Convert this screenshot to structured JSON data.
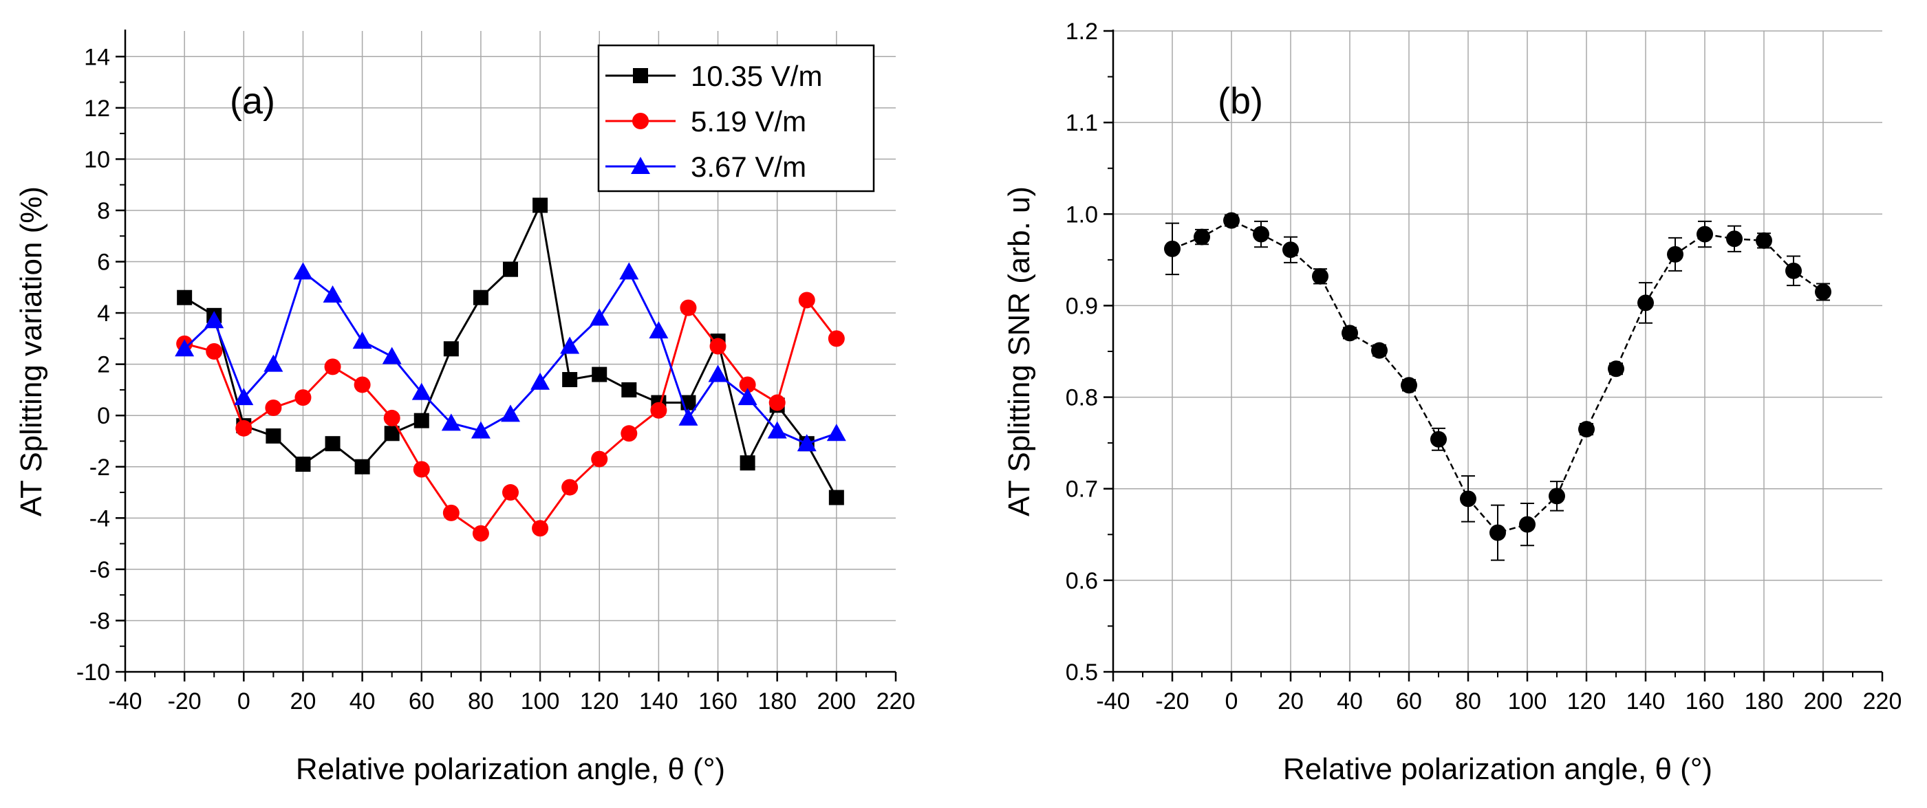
{
  "chart_data": [
    {
      "type": "line",
      "panel_label": "(a)",
      "xlabel": "Relative polarization angle, θ (°)",
      "ylabel": "AT Splitting variation (%)",
      "xlim": [
        -40,
        220
      ],
      "ylim": [
        -10,
        15
      ],
      "x_ticks": [
        -40,
        -20,
        0,
        20,
        40,
        60,
        80,
        100,
        120,
        140,
        160,
        180,
        200,
        220
      ],
      "y_ticks": [
        -10,
        -8,
        -6,
        -4,
        -2,
        0,
        2,
        4,
        6,
        8,
        10,
        12,
        14
      ],
      "grid": true,
      "legend_position": "top-right",
      "x": [
        -20,
        -10,
        0,
        10,
        20,
        30,
        40,
        50,
        60,
        70,
        80,
        90,
        100,
        110,
        120,
        130,
        140,
        150,
        160,
        170,
        180,
        190,
        200
      ],
      "series": [
        {
          "name": "10.35 V/m",
          "color": "#000000",
          "marker": "square",
          "values": [
            4.6,
            3.9,
            -0.4,
            -0.8,
            -1.9,
            -1.1,
            -2.0,
            -0.7,
            -0.2,
            2.6,
            4.6,
            5.7,
            8.2,
            1.4,
            1.6,
            1.0,
            0.5,
            0.5,
            2.9,
            -1.85,
            0.4,
            -1.1,
            -3.2
          ]
        },
        {
          "name": "5.19 V/m",
          "color": "#ff0000",
          "marker": "circle",
          "values": [
            2.8,
            2.5,
            -0.5,
            0.3,
            0.7,
            1.9,
            1.2,
            -0.1,
            -2.1,
            -3.8,
            -4.6,
            -3.0,
            -4.4,
            -2.8,
            -1.7,
            -0.7,
            0.2,
            4.2,
            2.7,
            1.2,
            0.5,
            4.5,
            3.0
          ]
        },
        {
          "name": "3.67 V/m",
          "color": "#0000ff",
          "marker": "triangle",
          "values": [
            2.6,
            3.7,
            0.7,
            2.0,
            5.6,
            4.7,
            2.9,
            2.3,
            0.9,
            -0.3,
            -0.6,
            0.05,
            1.3,
            2.7,
            3.8,
            5.6,
            3.3,
            -0.1,
            1.6,
            0.7,
            -0.6,
            -1.1,
            -0.7
          ]
        }
      ]
    },
    {
      "type": "scatter",
      "panel_label": "(b)",
      "xlabel": "Relative polarization angle, θ (°)",
      "ylabel": "AT Splitting SNR (arb. u)",
      "xlim": [
        -40,
        220
      ],
      "ylim": [
        0.5,
        1.2
      ],
      "x_ticks": [
        -40,
        -20,
        0,
        20,
        40,
        60,
        80,
        100,
        120,
        140,
        160,
        180,
        200,
        220
      ],
      "y_ticks": [
        "0.5",
        "0.6",
        "0.7",
        "0.8",
        "0.9",
        "1.0",
        "1.1",
        "1.2"
      ],
      "grid": true,
      "connected": true,
      "color": "#000000",
      "x": [
        -20,
        -10,
        0,
        10,
        20,
        30,
        40,
        50,
        60,
        70,
        80,
        90,
        100,
        110,
        120,
        130,
        140,
        150,
        160,
        170,
        180,
        190,
        200
      ],
      "values": [
        0.962,
        0.975,
        0.993,
        0.978,
        0.961,
        0.932,
        0.87,
        0.851,
        0.813,
        0.754,
        0.689,
        0.652,
        0.661,
        0.692,
        0.765,
        0.831,
        0.903,
        0.956,
        0.978,
        0.973,
        0.971,
        0.938,
        0.915
      ],
      "errors": [
        0.028,
        0.008,
        0.006,
        0.014,
        0.014,
        0.008,
        0.006,
        0.006,
        0.006,
        0.012,
        0.025,
        0.03,
        0.023,
        0.016,
        0.006,
        0.006,
        0.022,
        0.018,
        0.014,
        0.014,
        0.008,
        0.016,
        0.009
      ]
    }
  ]
}
